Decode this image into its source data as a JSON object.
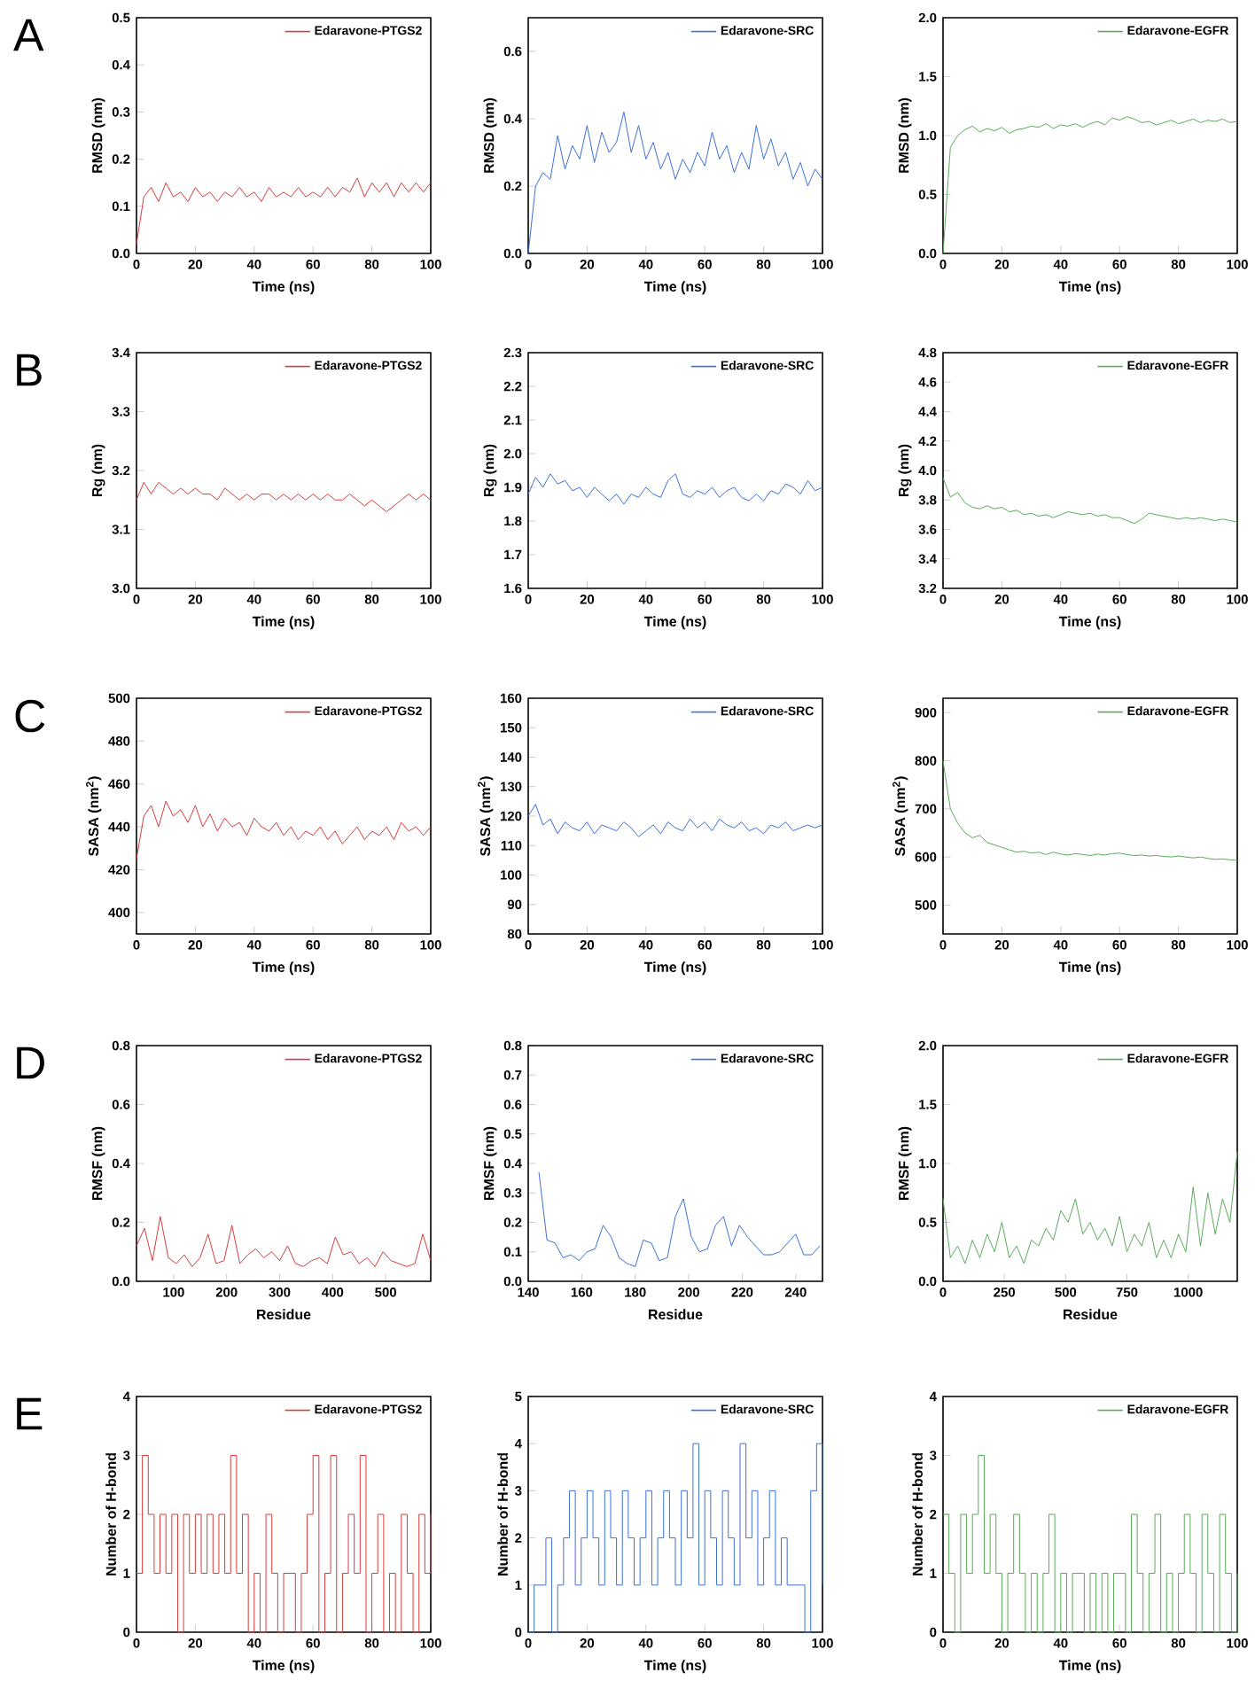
{
  "chart_data": [
    {
      "type": "line",
      "annotations": [
        "A"
      ],
      "xlabel": "Time (ns)",
      "ylabel": "RMSD (nm)",
      "legend": "top right",
      "xlim": [
        0,
        100
      ],
      "ylim": [
        0,
        0.5
      ],
      "xticks": [
        0,
        20,
        40,
        60,
        80,
        100
      ],
      "yticks": [
        {
          "value": 0,
          "label": "0.0"
        },
        0.1,
        0.2,
        0.3,
        0.4,
        0.5
      ],
      "x": [
        0,
        2.5,
        5,
        7.5,
        10,
        12.5,
        15,
        17.5,
        20,
        22.5,
        25,
        27.5,
        30,
        32.5,
        35,
        37.5,
        40,
        42.5,
        45,
        47.5,
        50,
        52.5,
        55,
        57.5,
        60,
        62.5,
        65,
        67.5,
        70,
        72.5,
        75,
        77.5,
        80,
        82.5,
        85,
        87.5,
        90,
        92.5,
        95,
        97.5,
        100
      ],
      "series": [
        {
          "name": "Edaravone-PTGS2",
          "color": "#d83b3b",
          "values": [
            0.02,
            0.12,
            0.14,
            0.11,
            0.15,
            0.12,
            0.13,
            0.11,
            0.14,
            0.12,
            0.13,
            0.11,
            0.13,
            0.12,
            0.14,
            0.12,
            0.13,
            0.11,
            0.14,
            0.12,
            0.13,
            0.12,
            0.14,
            0.12,
            0.13,
            0.12,
            0.14,
            0.12,
            0.14,
            0.13,
            0.16,
            0.12,
            0.15,
            0.13,
            0.15,
            0.12,
            0.15,
            0.13,
            0.15,
            0.13,
            0.15
          ]
        }
      ]
    },
    {
      "type": "line",
      "xlabel": "Time (ns)",
      "ylabel": "RMSD (nm)",
      "legend": "top right",
      "xlim": [
        0,
        100
      ],
      "ylim": [
        0,
        0.7
      ],
      "xticks": [
        0,
        20,
        40,
        60,
        80,
        100
      ],
      "yticks": [
        {
          "value": 0,
          "label": "0.0"
        },
        0.2,
        0.4,
        0.6
      ],
      "x": [
        0,
        2.5,
        5,
        7.5,
        10,
        12.5,
        15,
        17.5,
        20,
        22.5,
        25,
        27.5,
        30,
        32.5,
        35,
        37.5,
        40,
        42.5,
        45,
        47.5,
        50,
        52.5,
        55,
        57.5,
        60,
        62.5,
        65,
        67.5,
        70,
        72.5,
        75,
        77.5,
        80,
        82.5,
        85,
        87.5,
        90,
        92.5,
        95,
        97.5,
        100
      ],
      "series": [
        {
          "name": "Edaravone-SRC",
          "color": "#3b6fd9",
          "values": [
            0.0,
            0.2,
            0.24,
            0.22,
            0.35,
            0.25,
            0.32,
            0.28,
            0.38,
            0.27,
            0.36,
            0.3,
            0.33,
            0.42,
            0.3,
            0.38,
            0.28,
            0.33,
            0.25,
            0.3,
            0.22,
            0.28,
            0.24,
            0.3,
            0.26,
            0.36,
            0.28,
            0.32,
            0.24,
            0.3,
            0.25,
            0.38,
            0.28,
            0.34,
            0.26,
            0.3,
            0.22,
            0.27,
            0.2,
            0.25,
            0.22
          ]
        }
      ]
    },
    {
      "type": "line",
      "xlabel": "Time (ns)",
      "ylabel": "RMSD (nm)",
      "legend": "top right",
      "xlim": [
        0,
        100
      ],
      "ylim": [
        0,
        2
      ],
      "xticks": [
        0,
        20,
        40,
        60,
        80,
        100
      ],
      "yticks": [
        {
          "value": 0,
          "label": "0.0"
        },
        0.5,
        {
          "value": 1,
          "label": "1.0"
        },
        1.5,
        {
          "value": 2,
          "label": "2.0"
        }
      ],
      "x": [
        0,
        2.5,
        5,
        7.5,
        10,
        12.5,
        15,
        17.5,
        20,
        22.5,
        25,
        27.5,
        30,
        32.5,
        35,
        37.5,
        40,
        42.5,
        45,
        47.5,
        50,
        52.5,
        55,
        57.5,
        60,
        62.5,
        65,
        67.5,
        70,
        72.5,
        75,
        77.5,
        80,
        82.5,
        85,
        87.5,
        90,
        92.5,
        95,
        97.5,
        100
      ],
      "series": [
        {
          "name": "Edaravone-EGFR",
          "color": "#5aaa5a",
          "values": [
            0.0,
            0.9,
            1.0,
            1.05,
            1.08,
            1.03,
            1.06,
            1.04,
            1.07,
            1.02,
            1.05,
            1.06,
            1.08,
            1.07,
            1.1,
            1.06,
            1.09,
            1.08,
            1.1,
            1.07,
            1.1,
            1.12,
            1.09,
            1.15,
            1.13,
            1.16,
            1.14,
            1.11,
            1.12,
            1.09,
            1.11,
            1.13,
            1.1,
            1.12,
            1.14,
            1.11,
            1.13,
            1.12,
            1.14,
            1.11,
            1.12
          ]
        }
      ]
    },
    {
      "type": "line",
      "annotations": [
        "B"
      ],
      "xlabel": "Time (ns)",
      "ylabel": "Rg (nm)",
      "legend": "top right",
      "xlim": [
        0,
        100
      ],
      "ylim": [
        3.0,
        3.4
      ],
      "xticks": [
        0,
        20,
        40,
        60,
        80,
        100
      ],
      "yticks": [
        {
          "value": 3,
          "label": "3.0"
        },
        3.1,
        3.2,
        3.3,
        3.4
      ],
      "x": [
        0,
        2.5,
        5,
        7.5,
        10,
        12.5,
        15,
        17.5,
        20,
        22.5,
        25,
        27.5,
        30,
        32.5,
        35,
        37.5,
        40,
        42.5,
        45,
        47.5,
        50,
        52.5,
        55,
        57.5,
        60,
        62.5,
        65,
        67.5,
        70,
        72.5,
        75,
        77.5,
        80,
        82.5,
        85,
        87.5,
        90,
        92.5,
        95,
        97.5,
        100
      ],
      "series": [
        {
          "name": "Edaravone-PTGS2",
          "color": "#d83b3b",
          "values": [
            3.15,
            3.18,
            3.16,
            3.18,
            3.17,
            3.16,
            3.17,
            3.16,
            3.17,
            3.16,
            3.16,
            3.15,
            3.17,
            3.16,
            3.15,
            3.16,
            3.15,
            3.16,
            3.16,
            3.15,
            3.16,
            3.15,
            3.16,
            3.15,
            3.16,
            3.15,
            3.16,
            3.15,
            3.15,
            3.16,
            3.15,
            3.14,
            3.15,
            3.14,
            3.13,
            3.14,
            3.15,
            3.16,
            3.15,
            3.16,
            3.15
          ]
        }
      ]
    },
    {
      "type": "line",
      "xlabel": "Time (ns)",
      "ylabel": "Rg (nm)",
      "legend": "top right",
      "xlim": [
        0,
        100
      ],
      "ylim": [
        1.6,
        2.3
      ],
      "xticks": [
        0,
        20,
        40,
        60,
        80,
        100
      ],
      "yticks": [
        1.6,
        1.7,
        1.8,
        1.9,
        {
          "value": 2,
          "label": "2.0"
        },
        2.1,
        2.2,
        2.3
      ],
      "x": [
        0,
        2.5,
        5,
        7.5,
        10,
        12.5,
        15,
        17.5,
        20,
        22.5,
        25,
        27.5,
        30,
        32.5,
        35,
        37.5,
        40,
        42.5,
        45,
        47.5,
        50,
        52.5,
        55,
        57.5,
        60,
        62.5,
        65,
        67.5,
        70,
        72.5,
        75,
        77.5,
        80,
        82.5,
        85,
        87.5,
        90,
        92.5,
        95,
        97.5,
        100
      ],
      "series": [
        {
          "name": "Edaravone-SRC",
          "color": "#3b6fd9",
          "values": [
            1.88,
            1.93,
            1.9,
            1.94,
            1.91,
            1.92,
            1.89,
            1.9,
            1.87,
            1.9,
            1.88,
            1.86,
            1.88,
            1.85,
            1.88,
            1.87,
            1.9,
            1.88,
            1.87,
            1.92,
            1.94,
            1.88,
            1.87,
            1.89,
            1.88,
            1.9,
            1.87,
            1.89,
            1.9,
            1.87,
            1.86,
            1.88,
            1.86,
            1.89,
            1.88,
            1.91,
            1.9,
            1.88,
            1.92,
            1.89,
            1.9
          ]
        }
      ]
    },
    {
      "type": "line",
      "xlabel": "Time (ns)",
      "ylabel": "Rg (nm)",
      "legend": "top right",
      "xlim": [
        0,
        100
      ],
      "ylim": [
        3.2,
        4.8
      ],
      "xticks": [
        0,
        20,
        40,
        60,
        80,
        100
      ],
      "yticks": [
        3.2,
        3.4,
        3.6,
        3.8,
        {
          "value": 4,
          "label": "4.0"
        },
        4.2,
        4.4,
        4.6,
        4.8
      ],
      "x": [
        0,
        2.5,
        5,
        7.5,
        10,
        12.5,
        15,
        17.5,
        20,
        22.5,
        25,
        27.5,
        30,
        32.5,
        35,
        37.5,
        40,
        42.5,
        45,
        47.5,
        50,
        52.5,
        55,
        57.5,
        60,
        62.5,
        65,
        67.5,
        70,
        72.5,
        75,
        77.5,
        80,
        82.5,
        85,
        87.5,
        90,
        92.5,
        95,
        97.5,
        100
      ],
      "series": [
        {
          "name": "Edaravone-EGFR",
          "color": "#5aaa5a",
          "values": [
            3.95,
            3.82,
            3.85,
            3.78,
            3.75,
            3.74,
            3.76,
            3.74,
            3.75,
            3.72,
            3.73,
            3.7,
            3.71,
            3.69,
            3.7,
            3.68,
            3.7,
            3.72,
            3.71,
            3.7,
            3.71,
            3.69,
            3.7,
            3.68,
            3.68,
            3.66,
            3.64,
            3.67,
            3.71,
            3.7,
            3.69,
            3.68,
            3.67,
            3.68,
            3.67,
            3.68,
            3.67,
            3.66,
            3.67,
            3.66,
            3.65
          ]
        }
      ]
    },
    {
      "type": "line",
      "annotations": [
        "C"
      ],
      "xlabel": "Time (ns)",
      "ylabel": "SASA (nm$^{2}$)",
      "legend": "top right",
      "xlim": [
        0,
        100
      ],
      "ylim": [
        390,
        500
      ],
      "xticks": [
        0,
        20,
        40,
        60,
        80,
        100
      ],
      "yticks": [
        400,
        420,
        440,
        460,
        480,
        500
      ],
      "x": [
        0,
        2.5,
        5,
        7.5,
        10,
        12.5,
        15,
        17.5,
        20,
        22.5,
        25,
        27.5,
        30,
        32.5,
        35,
        37.5,
        40,
        42.5,
        45,
        47.5,
        50,
        52.5,
        55,
        57.5,
        60,
        62.5,
        65,
        67.5,
        70,
        72.5,
        75,
        77.5,
        80,
        82.5,
        85,
        87.5,
        90,
        92.5,
        95,
        97.5,
        100
      ],
      "series": [
        {
          "name": "Edaravone-PTGS2",
          "color": "#d83b3b",
          "values": [
            425,
            445,
            450,
            440,
            452,
            445,
            448,
            442,
            450,
            440,
            446,
            438,
            444,
            440,
            442,
            436,
            444,
            440,
            438,
            442,
            436,
            440,
            434,
            438,
            436,
            440,
            434,
            438,
            432,
            436,
            440,
            434,
            438,
            436,
            440,
            434,
            442,
            438,
            440,
            436,
            440
          ]
        }
      ]
    },
    {
      "type": "line",
      "xlabel": "Time (ns)",
      "ylabel": "SASA (nm$^{2}$)",
      "legend": "top right",
      "xlim": [
        0,
        100
      ],
      "ylim": [
        80,
        160
      ],
      "xticks": [
        0,
        20,
        40,
        60,
        80,
        100
      ],
      "yticks": [
        80,
        90,
        100,
        110,
        120,
        130,
        140,
        150,
        160
      ],
      "x": [
        0,
        2.5,
        5,
        7.5,
        10,
        12.5,
        15,
        17.5,
        20,
        22.5,
        25,
        27.5,
        30,
        32.5,
        35,
        37.5,
        40,
        42.5,
        45,
        47.5,
        50,
        52.5,
        55,
        57.5,
        60,
        62.5,
        65,
        67.5,
        70,
        72.5,
        75,
        77.5,
        80,
        82.5,
        85,
        87.5,
        90,
        92.5,
        95,
        97.5,
        100
      ],
      "series": [
        {
          "name": "Edaravone-SRC",
          "color": "#3b6fd9",
          "values": [
            120,
            124,
            117,
            119,
            114,
            118,
            116,
            115,
            118,
            114,
            117,
            116,
            115,
            118,
            116,
            113,
            115,
            117,
            114,
            118,
            116,
            115,
            119,
            116,
            118,
            115,
            119,
            117,
            116,
            118,
            115,
            116,
            114,
            117,
            116,
            118,
            115,
            116,
            117,
            116,
            117
          ]
        }
      ]
    },
    {
      "type": "line",
      "xlabel": "Time (ns)",
      "ylabel": "SASA (nm$^{2}$)",
      "legend": "top right",
      "xlim": [
        0,
        100
      ],
      "ylim": [
        440,
        930
      ],
      "xticks": [
        0,
        20,
        40,
        60,
        80,
        100
      ],
      "yticks": [
        500,
        600,
        700,
        800,
        900
      ],
      "x": [
        0,
        2.5,
        5,
        7.5,
        10,
        12.5,
        15,
        17.5,
        20,
        22.5,
        25,
        27.5,
        30,
        32.5,
        35,
        37.5,
        40,
        42.5,
        45,
        47.5,
        50,
        52.5,
        55,
        57.5,
        60,
        62.5,
        65,
        67.5,
        70,
        72.5,
        75,
        77.5,
        80,
        82.5,
        85,
        87.5,
        90,
        92.5,
        95,
        97.5,
        100
      ],
      "series": [
        {
          "name": "Edaravone-EGFR",
          "color": "#5aaa5a",
          "values": [
            800,
            700,
            670,
            650,
            640,
            645,
            630,
            625,
            620,
            615,
            610,
            612,
            608,
            610,
            605,
            610,
            606,
            604,
            607,
            605,
            603,
            606,
            604,
            607,
            608,
            605,
            603,
            604,
            602,
            603,
            601,
            600,
            602,
            600,
            598,
            600,
            597,
            595,
            596,
            594,
            593
          ]
        }
      ]
    },
    {
      "type": "line",
      "annotations": [
        "D"
      ],
      "xlabel": "Residue",
      "ylabel": "RMSF (nm)",
      "legend": "top right",
      "xlim": [
        30,
        585
      ],
      "ylim": [
        0,
        0.8
      ],
      "xticks": [
        100,
        200,
        300,
        400,
        500
      ],
      "yticks": [
        {
          "value": 0,
          "label": "0.0"
        },
        0.2,
        0.4,
        0.6,
        0.8
      ],
      "x": [
        30,
        45,
        60,
        75,
        90,
        105,
        120,
        135,
        150,
        165,
        180,
        195,
        210,
        225,
        240,
        255,
        270,
        285,
        300,
        315,
        330,
        345,
        360,
        375,
        390,
        405,
        420,
        435,
        450,
        465,
        480,
        495,
        510,
        525,
        540,
        555,
        570,
        585
      ],
      "series": [
        {
          "name": "Edaravone-PTGS2",
          "color": "#d83b3b",
          "values": [
            0.12,
            0.18,
            0.07,
            0.22,
            0.08,
            0.06,
            0.09,
            0.05,
            0.08,
            0.16,
            0.06,
            0.07,
            0.19,
            0.06,
            0.09,
            0.11,
            0.08,
            0.1,
            0.07,
            0.12,
            0.06,
            0.05,
            0.07,
            0.08,
            0.06,
            0.15,
            0.09,
            0.1,
            0.06,
            0.08,
            0.05,
            0.1,
            0.07,
            0.06,
            0.05,
            0.06,
            0.16,
            0.07
          ]
        }
      ]
    },
    {
      "type": "line",
      "xlabel": "Residue",
      "ylabel": "RMSF (nm)",
      "legend": "top right",
      "xlim": [
        140,
        250
      ],
      "ylim": [
        0,
        0.8
      ],
      "xticks": [
        140,
        160,
        180,
        200,
        220,
        240
      ],
      "yticks": [
        {
          "value": 0,
          "label": "0.0"
        },
        0.1,
        0.2,
        0.3,
        0.4,
        0.5,
        0.6,
        0.7,
        0.8
      ],
      "x": [
        144,
        147,
        150,
        153,
        156,
        159,
        162,
        165,
        168,
        171,
        174,
        177,
        180,
        183,
        186,
        189,
        192,
        195,
        198,
        201,
        204,
        207,
        210,
        213,
        216,
        219,
        222,
        225,
        228,
        231,
        234,
        237,
        240,
        243,
        246,
        249
      ],
      "series": [
        {
          "name": "Edaravone-SRC",
          "color": "#3b6fd9",
          "values": [
            0.37,
            0.14,
            0.13,
            0.08,
            0.09,
            0.07,
            0.1,
            0.11,
            0.19,
            0.15,
            0.08,
            0.06,
            0.05,
            0.14,
            0.13,
            0.07,
            0.08,
            0.22,
            0.28,
            0.15,
            0.1,
            0.11,
            0.19,
            0.22,
            0.12,
            0.19,
            0.15,
            0.12,
            0.09,
            0.09,
            0.1,
            0.13,
            0.16,
            0.09,
            0.09,
            0.12
          ]
        }
      ]
    },
    {
      "type": "line",
      "xlabel": "Residue",
      "ylabel": "RMSF (nm)",
      "legend": "top right",
      "xlim": [
        0,
        1200
      ],
      "ylim": [
        0,
        2
      ],
      "xticks": [
        0,
        250,
        500,
        750,
        1000
      ],
      "yticks": [
        {
          "value": 0,
          "label": "0.0"
        },
        0.5,
        {
          "value": 1,
          "label": "1.0"
        },
        1.5,
        {
          "value": 2,
          "label": "2.0"
        }
      ],
      "x": [
        0,
        30,
        60,
        90,
        120,
        150,
        180,
        210,
        240,
        270,
        300,
        330,
        360,
        390,
        420,
        450,
        480,
        510,
        540,
        570,
        600,
        630,
        660,
        690,
        720,
        750,
        780,
        810,
        840,
        870,
        900,
        930,
        960,
        990,
        1020,
        1050,
        1080,
        1110,
        1140,
        1170,
        1200
      ],
      "series": [
        {
          "name": "Edaravone-EGFR",
          "color": "#5aaa5a",
          "values": [
            0.7,
            0.2,
            0.3,
            0.15,
            0.35,
            0.2,
            0.4,
            0.25,
            0.5,
            0.2,
            0.3,
            0.15,
            0.35,
            0.3,
            0.45,
            0.35,
            0.6,
            0.5,
            0.7,
            0.4,
            0.5,
            0.35,
            0.45,
            0.3,
            0.55,
            0.25,
            0.4,
            0.3,
            0.5,
            0.2,
            0.35,
            0.2,
            0.4,
            0.25,
            0.8,
            0.3,
            0.75,
            0.4,
            0.7,
            0.5,
            1.1
          ]
        }
      ]
    },
    {
      "type": "step",
      "annotations": [
        "E"
      ],
      "xlabel": "Time (ns)",
      "ylabel": "Number of H-bond",
      "legend": "top right",
      "xlim": [
        0,
        100
      ],
      "ylim": [
        0,
        4
      ],
      "xticks": [
        0,
        20,
        40,
        60,
        80,
        100
      ],
      "yticks": [
        0,
        1,
        2,
        3,
        4
      ],
      "x": [
        0,
        2,
        4,
        6,
        8,
        10,
        12,
        14,
        16,
        18,
        20,
        22,
        24,
        26,
        28,
        30,
        32,
        34,
        36,
        38,
        40,
        42,
        44,
        46,
        48,
        50,
        52,
        54,
        56,
        58,
        60,
        62,
        64,
        66,
        68,
        70,
        72,
        74,
        76,
        78,
        80,
        82,
        84,
        86,
        88,
        90,
        92,
        94,
        96,
        98,
        100
      ],
      "series": [
        {
          "name": "Edaravone-PTGS2",
          "color": "#d83b3b",
          "values": [
            1,
            3,
            2,
            1,
            2,
            1,
            2,
            0,
            2,
            1,
            2,
            1,
            2,
            1,
            2,
            1,
            3,
            1,
            2,
            0,
            1,
            0,
            2,
            1,
            0,
            1,
            1,
            0,
            1,
            2,
            3,
            0,
            1,
            3,
            0,
            1,
            2,
            1,
            3,
            0,
            1,
            2,
            0,
            1,
            0,
            2,
            1,
            0,
            2,
            1,
            2
          ]
        }
      ]
    },
    {
      "type": "step",
      "xlabel": "Time (ns)",
      "ylabel": "Number of H-bond",
      "legend": "top right",
      "xlim": [
        0,
        100
      ],
      "ylim": [
        0,
        5
      ],
      "xticks": [
        0,
        20,
        40,
        60,
        80,
        100
      ],
      "yticks": [
        0,
        1,
        2,
        3,
        4,
        5
      ],
      "x": [
        0,
        2,
        4,
        6,
        8,
        10,
        12,
        14,
        16,
        18,
        20,
        22,
        24,
        26,
        28,
        30,
        32,
        34,
        36,
        38,
        40,
        42,
        44,
        46,
        48,
        50,
        52,
        54,
        56,
        58,
        60,
        62,
        64,
        66,
        68,
        70,
        72,
        74,
        76,
        78,
        80,
        82,
        84,
        86,
        88,
        90,
        92,
        94,
        96,
        98,
        100
      ],
      "series": [
        {
          "name": "Edaravone-SRC",
          "color": "#3b6fd9",
          "values": [
            0,
            1,
            1,
            2,
            0,
            1,
            2,
            3,
            1,
            2,
            3,
            2,
            1,
            3,
            2,
            1,
            3,
            2,
            1,
            2,
            3,
            1,
            2,
            3,
            2,
            1,
            3,
            2,
            4,
            1,
            3,
            2,
            1,
            3,
            2,
            1,
            4,
            2,
            3,
            1,
            2,
            3,
            1,
            2,
            1,
            1,
            1,
            0,
            3,
            4,
            1
          ]
        }
      ]
    },
    {
      "type": "step",
      "xlabel": "Time (ns)",
      "ylabel": "Number of H-bond",
      "legend": "top right",
      "xlim": [
        0,
        100
      ],
      "ylim": [
        0,
        4
      ],
      "xticks": [
        0,
        20,
        40,
        60,
        80,
        100
      ],
      "yticks": [
        0,
        1,
        2,
        3,
        4
      ],
      "x": [
        0,
        2,
        4,
        6,
        8,
        10,
        12,
        14,
        16,
        18,
        20,
        22,
        24,
        26,
        28,
        30,
        32,
        34,
        36,
        38,
        40,
        42,
        44,
        46,
        48,
        50,
        52,
        54,
        56,
        58,
        60,
        62,
        64,
        66,
        68,
        70,
        72,
        74,
        76,
        78,
        80,
        82,
        84,
        86,
        88,
        90,
        92,
        94,
        96,
        98,
        100
      ],
      "series": [
        {
          "name": "Edaravone-EGFR",
          "color": "#5aaa5a",
          "values": [
            2,
            1,
            0,
            2,
            1,
            2,
            3,
            1,
            2,
            1,
            0,
            1,
            2,
            1,
            0,
            1,
            0,
            1,
            2,
            0,
            1,
            0,
            1,
            1,
            0,
            1,
            0,
            1,
            0,
            1,
            1,
            0,
            2,
            1,
            0,
            1,
            2,
            0,
            1,
            0,
            1,
            2,
            1,
            0,
            2,
            1,
            0,
            2,
            1,
            0,
            1
          ]
        }
      ]
    }
  ]
}
